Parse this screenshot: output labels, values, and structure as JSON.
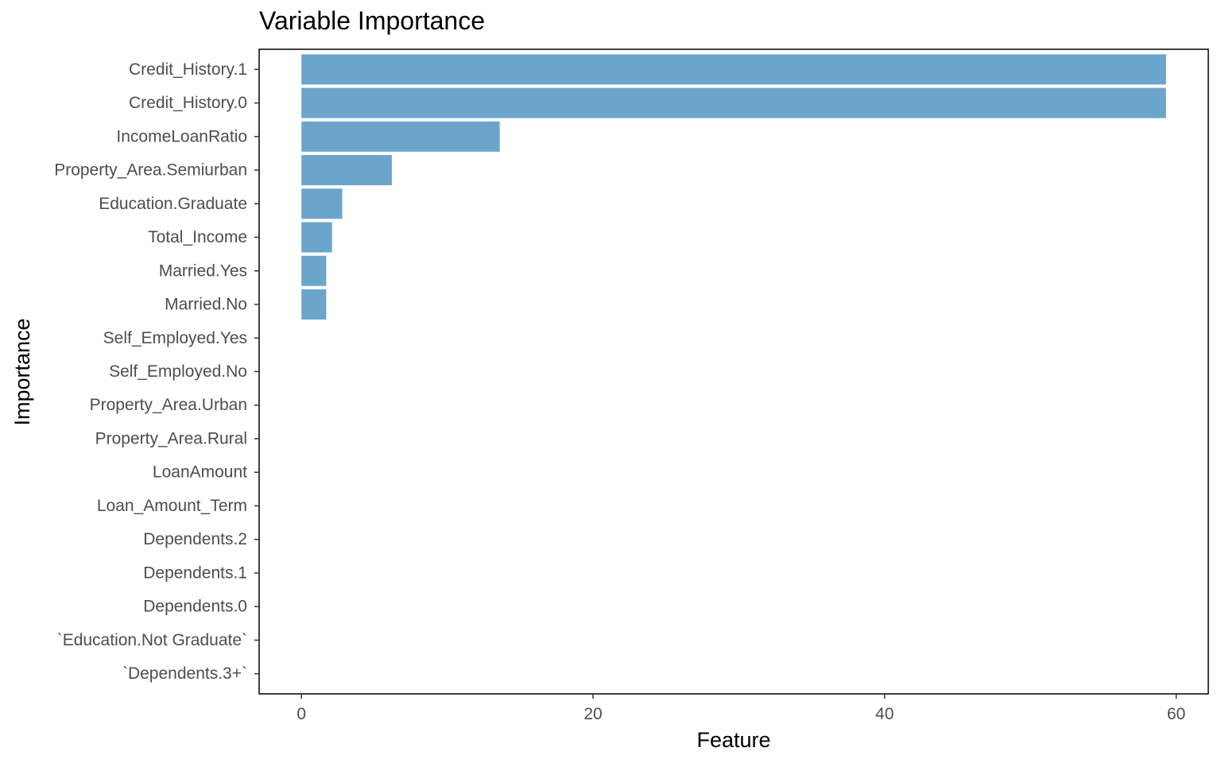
{
  "chart_data": {
    "type": "bar",
    "orientation": "horizontal",
    "title": "Variable Importance",
    "xlabel": "Feature",
    "ylabel": "Importance",
    "xlim": [
      -2.9,
      62.2
    ],
    "xticks": [
      0,
      20,
      40,
      60
    ],
    "grid": false,
    "bar_color": "#6BA5CB",
    "categories": [
      "Credit_History.1",
      "Credit_History.0",
      "IncomeLoanRatio",
      "Property_Area.Semiurban",
      "Education.Graduate",
      "Total_Income",
      "Married.Yes",
      "Married.No",
      "Self_Employed.Yes",
      "Self_Employed.No",
      "Property_Area.Urban",
      "Property_Area.Rural",
      "LoanAmount",
      "Loan_Amount_Term",
      "Dependents.2",
      "Dependents.1",
      "Dependents.0",
      "`Education.Not Graduate`",
      "`Dependents.3+`"
    ],
    "values": [
      59.3,
      59.3,
      13.6,
      6.2,
      2.8,
      2.1,
      1.7,
      1.7,
      0,
      0,
      0,
      0,
      0,
      0,
      0,
      0,
      0,
      0,
      0
    ]
  }
}
